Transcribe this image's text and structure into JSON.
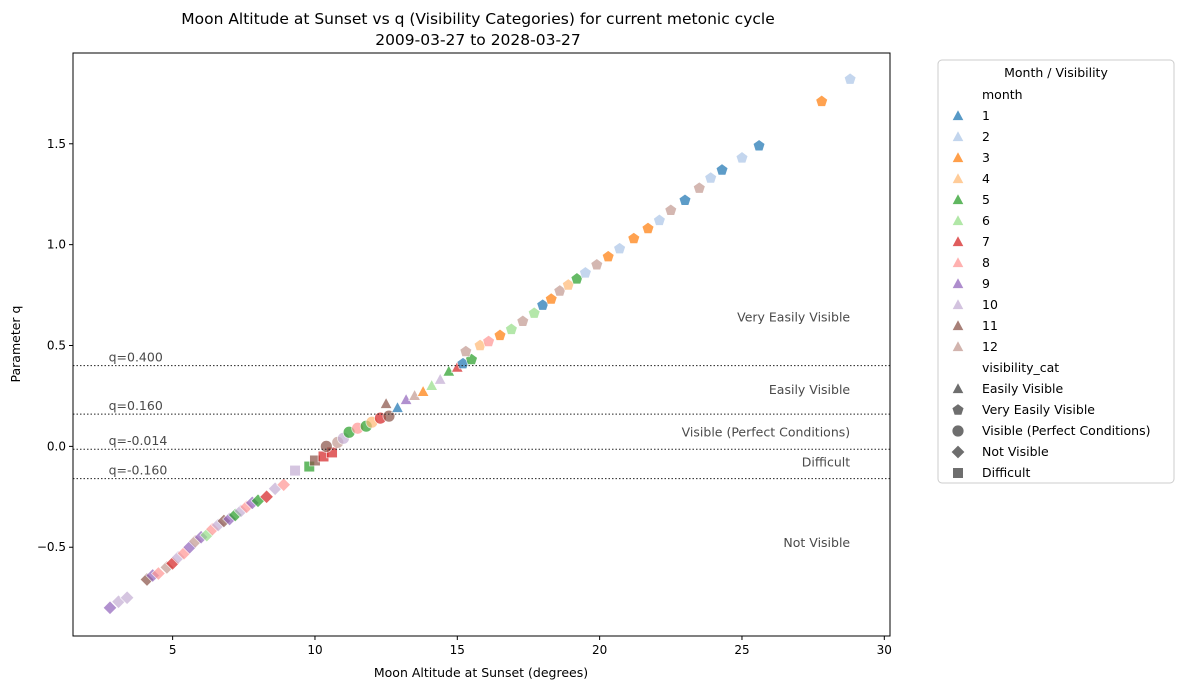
{
  "chart_data": {
    "type": "scatter",
    "title": "Moon Altitude at Sunset vs q (Visibility Categories) for current metonic cycle",
    "subtitle": "2009-03-27 to 2028-03-27",
    "xlabel": "Moon Altitude at Sunset (degrees)",
    "ylabel": "Parameter q",
    "xlim": [
      1.5,
      30.2
    ],
    "ylim": [
      -0.94,
      1.95
    ],
    "xticks": [
      {
        "value": 5,
        "label": "5"
      },
      {
        "value": 10,
        "label": "10"
      },
      {
        "value": 15,
        "label": "15"
      },
      {
        "value": 20,
        "label": "20"
      },
      {
        "value": 25,
        "label": "25"
      },
      {
        "value": 30,
        "label": "30"
      }
    ],
    "yticks": [
      {
        "value": -0.5,
        "label": "−0.5"
      },
      {
        "value": 0.0,
        "label": "0.0"
      },
      {
        "value": 0.5,
        "label": "0.5"
      },
      {
        "value": 1.0,
        "label": "1.0"
      },
      {
        "value": 1.5,
        "label": "1.5"
      }
    ],
    "grid": false,
    "legend_position": "outside-right",
    "thresholds": [
      {
        "q": 0.4,
        "label": "q=0.400"
      },
      {
        "q": 0.16,
        "label": "q=0.160"
      },
      {
        "q": -0.014,
        "label": "q=-0.014"
      },
      {
        "q": -0.16,
        "label": "q=-0.160"
      }
    ],
    "region_labels": [
      {
        "label": "Very Easily Visible",
        "q": 0.64
      },
      {
        "label": "Easily Visible",
        "q": 0.28
      },
      {
        "label": "Visible (Perfect Conditions)",
        "q": 0.07
      },
      {
        "label": "Difficult",
        "q": -0.08
      },
      {
        "label": "Not Visible",
        "q": -0.48
      }
    ],
    "legend_title": "Month / Visibility",
    "hue_title": "month",
    "months": [
      {
        "label": "1",
        "color": "#1f77b4"
      },
      {
        "label": "2",
        "color": "#aec7e8"
      },
      {
        "label": "3",
        "color": "#ff7f0e"
      },
      {
        "label": "4",
        "color": "#ffbb78"
      },
      {
        "label": "5",
        "color": "#2ca02c"
      },
      {
        "label": "6",
        "color": "#98df8a"
      },
      {
        "label": "7",
        "color": "#d62728"
      },
      {
        "label": "8",
        "color": "#ff9896"
      },
      {
        "label": "9",
        "color": "#9467bd"
      },
      {
        "label": "10",
        "color": "#c5b0d5"
      },
      {
        "label": "11",
        "color": "#8c564b"
      },
      {
        "label": "12",
        "color": "#c49c94"
      }
    ],
    "style_title": "visibility_cat",
    "categories": [
      {
        "label": "Easily Visible",
        "marker": "triangle"
      },
      {
        "label": "Very Easily Visible",
        "marker": "pentagon"
      },
      {
        "label": "Visible (Perfect Conditions)",
        "marker": "circle"
      },
      {
        "label": "Not Visible",
        "marker": "diamond"
      },
      {
        "label": "Difficult",
        "marker": "square"
      }
    ],
    "points": [
      [
        2.8,
        -0.8,
        9
      ],
      [
        3.1,
        -0.77,
        10
      ],
      [
        3.4,
        -0.75,
        10
      ],
      [
        4.1,
        -0.66,
        11
      ],
      [
        4.3,
        -0.64,
        9
      ],
      [
        4.5,
        -0.63,
        8
      ],
      [
        4.8,
        -0.6,
        12
      ],
      [
        5.0,
        -0.58,
        7
      ],
      [
        5.2,
        -0.55,
        10
      ],
      [
        5.4,
        -0.53,
        8
      ],
      [
        5.6,
        -0.5,
        9
      ],
      [
        5.8,
        -0.47,
        12
      ],
      [
        6.0,
        -0.45,
        9
      ],
      [
        6.2,
        -0.44,
        6
      ],
      [
        6.4,
        -0.41,
        8
      ],
      [
        6.6,
        -0.39,
        10
      ],
      [
        6.8,
        -0.37,
        11
      ],
      [
        7.0,
        -0.36,
        9
      ],
      [
        7.2,
        -0.34,
        5
      ],
      [
        7.4,
        -0.32,
        10
      ],
      [
        7.6,
        -0.3,
        8
      ],
      [
        7.8,
        -0.28,
        9
      ],
      [
        8.0,
        -0.27,
        5
      ],
      [
        8.3,
        -0.25,
        7
      ],
      [
        8.6,
        -0.21,
        10
      ],
      [
        8.9,
        -0.19,
        8
      ],
      [
        9.3,
        -0.12,
        10
      ],
      [
        9.8,
        -0.1,
        5
      ],
      [
        10.0,
        -0.07,
        11
      ],
      [
        10.3,
        -0.05,
        7
      ],
      [
        10.6,
        -0.03,
        7
      ],
      [
        10.4,
        0.0,
        11
      ],
      [
        10.8,
        0.02,
        12
      ],
      [
        11.0,
        0.04,
        10
      ],
      [
        11.2,
        0.07,
        5
      ],
      [
        11.5,
        0.09,
        8
      ],
      [
        11.8,
        0.1,
        5
      ],
      [
        12.0,
        0.12,
        4
      ],
      [
        12.3,
        0.14,
        7
      ],
      [
        12.6,
        0.15,
        11
      ],
      [
        12.5,
        0.21,
        11
      ],
      [
        12.9,
        0.19,
        1
      ],
      [
        13.2,
        0.23,
        9
      ],
      [
        13.5,
        0.25,
        12
      ],
      [
        13.8,
        0.27,
        3
      ],
      [
        14.1,
        0.3,
        6
      ],
      [
        14.4,
        0.33,
        10
      ],
      [
        14.7,
        0.37,
        5
      ],
      [
        15.0,
        0.39,
        7
      ],
      [
        15.2,
        0.41,
        1
      ],
      [
        15.5,
        0.43,
        5
      ],
      [
        15.3,
        0.47,
        12
      ],
      [
        15.8,
        0.5,
        4
      ],
      [
        16.1,
        0.52,
        8
      ],
      [
        16.5,
        0.55,
        3
      ],
      [
        16.9,
        0.58,
        6
      ],
      [
        17.3,
        0.62,
        12
      ],
      [
        17.7,
        0.66,
        6
      ],
      [
        18.0,
        0.7,
        1
      ],
      [
        18.3,
        0.73,
        3
      ],
      [
        18.6,
        0.77,
        12
      ],
      [
        18.9,
        0.8,
        4
      ],
      [
        19.2,
        0.83,
        5
      ],
      [
        19.5,
        0.86,
        2
      ],
      [
        19.9,
        0.9,
        12
      ],
      [
        20.3,
        0.94,
        3
      ],
      [
        20.7,
        0.98,
        2
      ],
      [
        21.2,
        1.03,
        3
      ],
      [
        21.7,
        1.08,
        3
      ],
      [
        22.1,
        1.12,
        2
      ],
      [
        22.5,
        1.17,
        12
      ],
      [
        23.0,
        1.22,
        1
      ],
      [
        23.5,
        1.28,
        12
      ],
      [
        23.9,
        1.33,
        2
      ],
      [
        24.3,
        1.37,
        1
      ],
      [
        25.0,
        1.43,
        2
      ],
      [
        25.6,
        1.49,
        1
      ],
      [
        27.8,
        1.71,
        3
      ],
      [
        28.8,
        1.82,
        2
      ]
    ]
  }
}
